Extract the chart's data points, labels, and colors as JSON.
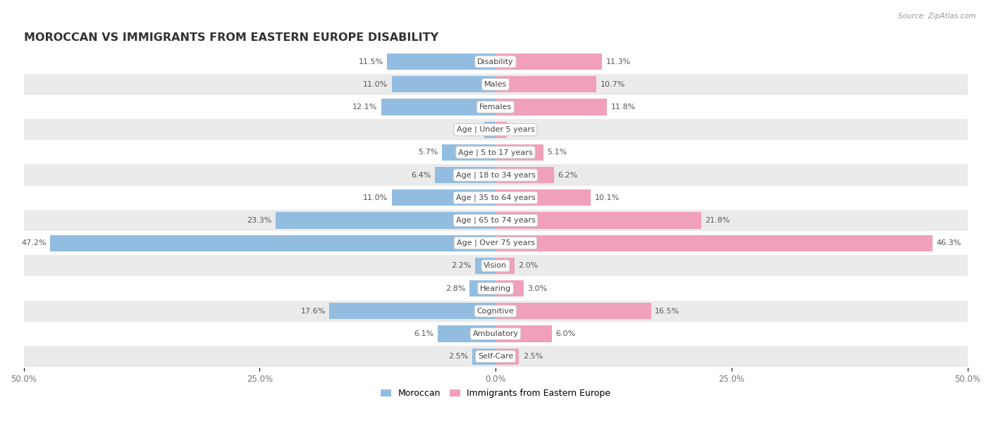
{
  "title": "MOROCCAN VS IMMIGRANTS FROM EASTERN EUROPE DISABILITY",
  "source": "Source: ZipAtlas.com",
  "categories": [
    "Disability",
    "Males",
    "Females",
    "Age | Under 5 years",
    "Age | 5 to 17 years",
    "Age | 18 to 34 years",
    "Age | 35 to 64 years",
    "Age | 65 to 74 years",
    "Age | Over 75 years",
    "Vision",
    "Hearing",
    "Cognitive",
    "Ambulatory",
    "Self-Care"
  ],
  "moroccan": [
    11.5,
    11.0,
    12.1,
    1.2,
    5.7,
    6.4,
    11.0,
    23.3,
    47.2,
    2.2,
    2.8,
    17.6,
    6.1,
    2.5
  ],
  "eastern_europe": [
    11.3,
    10.7,
    11.8,
    1.2,
    5.1,
    6.2,
    10.1,
    21.8,
    46.3,
    2.0,
    3.0,
    16.5,
    6.0,
    2.5
  ],
  "moroccan_color": "#92bde0",
  "eastern_europe_color": "#f0a0b8",
  "background_color": "#ffffff",
  "row_color_light": "#ffffff",
  "row_color_dark": "#ebebeb",
  "axis_max": 50.0,
  "bar_height": 0.72,
  "label_fontsize": 8.0,
  "title_fontsize": 11.5,
  "legend_fontsize": 9,
  "value_fontsize": 8.0
}
